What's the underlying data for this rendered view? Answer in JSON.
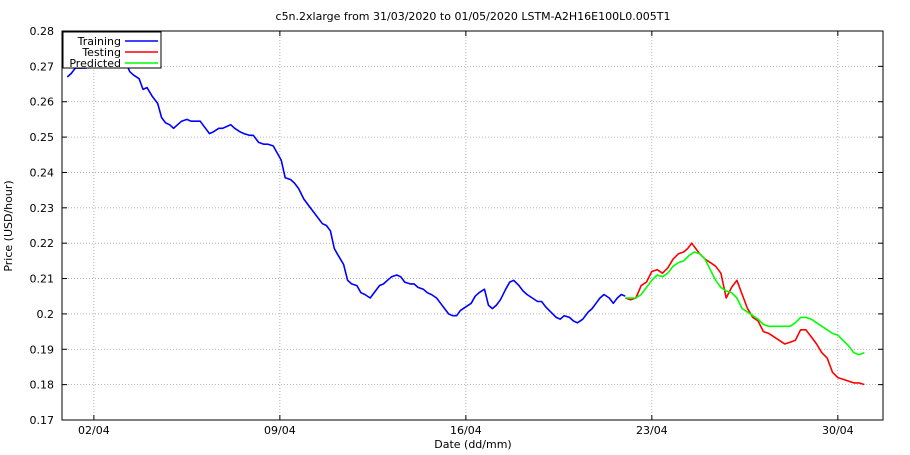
{
  "chart_data": {
    "type": "line",
    "title": "c5n.2xlarge from 31/03/2020 to 01/05/2020 LSTM-A2H16E100L0.005T1",
    "xlabel": "Date (dd/mm)",
    "ylabel": "Price (USD/hour)",
    "xlim": [
      -0.2,
      30.7
    ],
    "ylim": [
      0.17,
      0.28
    ],
    "grid": true,
    "legend_position": "top-left",
    "x_ticks": [
      {
        "x": 1,
        "label": "02/04"
      },
      {
        "x": 8,
        "label": "09/04"
      },
      {
        "x": 15,
        "label": "16/04"
      },
      {
        "x": 22,
        "label": "23/04"
      },
      {
        "x": 29,
        "label": "30/04"
      }
    ],
    "y_ticks": [
      0.17,
      0.18,
      0.19,
      0.2,
      0.21,
      0.22,
      0.23,
      0.24,
      0.25,
      0.26,
      0.27,
      0.28
    ],
    "y_tick_labels": [
      "0.17",
      "0.18",
      "0.19",
      "0.2",
      "0.21",
      "0.22",
      "0.23",
      "0.24",
      "0.25",
      "0.26",
      "0.27",
      "0.28"
    ],
    "series": [
      {
        "name": "Training",
        "color": "#0000ff",
        "x": [
          0.0,
          0.15,
          0.3,
          0.5,
          0.7,
          0.85,
          1.0,
          1.2,
          1.4,
          1.55,
          1.7,
          1.9,
          2.05,
          2.2,
          2.35,
          2.5,
          2.7,
          2.85,
          3.0,
          3.2,
          3.4,
          3.55,
          3.7,
          3.85,
          4.0,
          4.15,
          4.3,
          4.5,
          4.65,
          4.8,
          5.0,
          5.2,
          5.35,
          5.5,
          5.7,
          5.85,
          6.0,
          6.15,
          6.3,
          6.5,
          6.65,
          6.85,
          7.0,
          7.2,
          7.4,
          7.55,
          7.75,
          7.9,
          8.05,
          8.2,
          8.4,
          8.55,
          8.7,
          8.9,
          9.1,
          9.3,
          9.45,
          9.6,
          9.75,
          9.9,
          10.05,
          10.2,
          10.4,
          10.55,
          10.7,
          10.9,
          11.05,
          11.2,
          11.4,
          11.6,
          11.75,
          11.9,
          12.05,
          12.2,
          12.4,
          12.55,
          12.7,
          12.9,
          13.05,
          13.2,
          13.4,
          13.55,
          13.7,
          13.9,
          14.05,
          14.2,
          14.35,
          14.5,
          14.65,
          14.8,
          15.0,
          15.2,
          15.35,
          15.5,
          15.7,
          15.85,
          16.0,
          16.15,
          16.3,
          16.5,
          16.65,
          16.8,
          17.0,
          17.15,
          17.3,
          17.5,
          17.7,
          17.85,
          18.0,
          18.2,
          18.4,
          18.55,
          18.7,
          18.9,
          19.05,
          19.2,
          19.4,
          19.6,
          19.75,
          19.9,
          20.05,
          20.2,
          20.4,
          20.55,
          20.7,
          20.85,
          21.0
        ],
        "y": [
          0.267,
          0.268,
          0.2695,
          0.2695,
          0.2695,
          0.27,
          0.2715,
          0.2715,
          0.2725,
          0.2725,
          0.2705,
          0.272,
          0.2725,
          0.271,
          0.2685,
          0.2675,
          0.2665,
          0.2635,
          0.264,
          0.2615,
          0.2595,
          0.2555,
          0.254,
          0.2535,
          0.2525,
          0.2535,
          0.2545,
          0.255,
          0.2545,
          0.2545,
          0.2545,
          0.2525,
          0.251,
          0.2515,
          0.2525,
          0.2525,
          0.253,
          0.2535,
          0.2525,
          0.2515,
          0.251,
          0.2505,
          0.2505,
          0.2485,
          0.248,
          0.248,
          0.2475,
          0.2455,
          0.2435,
          0.2385,
          0.238,
          0.237,
          0.2355,
          0.2325,
          0.2305,
          0.2285,
          0.227,
          0.2255,
          0.225,
          0.2235,
          0.2185,
          0.2165,
          0.214,
          0.2095,
          0.2085,
          0.208,
          0.206,
          0.2055,
          0.2045,
          0.2065,
          0.208,
          0.2085,
          0.2095,
          0.2105,
          0.211,
          0.2105,
          0.209,
          0.2085,
          0.2085,
          0.2075,
          0.207,
          0.206,
          0.2055,
          0.2045,
          0.203,
          0.2015,
          0.2,
          0.1995,
          0.1995,
          0.201,
          0.202,
          0.203,
          0.205,
          0.206,
          0.207,
          0.2025,
          0.2015,
          0.2025,
          0.204,
          0.207,
          0.209,
          0.2095,
          0.208,
          0.2065,
          0.2055,
          0.2045,
          0.2035,
          0.2035,
          0.202,
          0.2005,
          0.199,
          0.1985,
          0.1995,
          0.199,
          0.198,
          0.1975,
          0.1985,
          0.2005,
          0.2015,
          0.203,
          0.2045,
          0.2055,
          0.2045,
          0.203,
          0.2045,
          0.2055,
          0.205
        ]
      },
      {
        "name": "Testing",
        "color": "#ff0000",
        "x": [
          21.0,
          21.2,
          21.4,
          21.6,
          21.8,
          22.0,
          22.2,
          22.4,
          22.6,
          22.8,
          23.0,
          23.2,
          23.35,
          23.5,
          23.65,
          23.8,
          24.0,
          24.2,
          24.4,
          24.6,
          24.8,
          25.0,
          25.2,
          25.4,
          25.6,
          25.8,
          26.0,
          26.2,
          26.4,
          26.6,
          26.8,
          27.0,
          27.2,
          27.4,
          27.6,
          27.8,
          28.0,
          28.2,
          28.4,
          28.6,
          28.8,
          29.0,
          29.2,
          29.4,
          29.6,
          29.8,
          30.0
        ],
        "y": [
          0.2045,
          0.204,
          0.2045,
          0.208,
          0.209,
          0.212,
          0.2125,
          0.2115,
          0.213,
          0.2155,
          0.217,
          0.2175,
          0.2185,
          0.22,
          0.2185,
          0.217,
          0.2155,
          0.2145,
          0.2135,
          0.2115,
          0.2045,
          0.2075,
          0.2095,
          0.2055,
          0.2015,
          0.199,
          0.198,
          0.195,
          0.1945,
          0.1935,
          0.1925,
          0.1915,
          0.192,
          0.1925,
          0.1955,
          0.1955,
          0.1935,
          0.1915,
          0.189,
          0.1875,
          0.1835,
          0.182,
          0.1815,
          0.181,
          0.1805,
          0.1805,
          0.18
        ]
      },
      {
        "name": "Predicted",
        "color": "#00ff00",
        "x": [
          21.0,
          21.2,
          21.4,
          21.6,
          21.8,
          22.0,
          22.2,
          22.4,
          22.6,
          22.8,
          23.0,
          23.2,
          23.4,
          23.6,
          23.8,
          24.0,
          24.2,
          24.4,
          24.6,
          24.8,
          25.0,
          25.2,
          25.4,
          25.6,
          25.8,
          26.0,
          26.2,
          26.4,
          26.6,
          26.8,
          27.0,
          27.2,
          27.4,
          27.6,
          27.8,
          28.0,
          28.2,
          28.4,
          28.6,
          28.8,
          29.0,
          29.2,
          29.4,
          29.6,
          29.8,
          30.0
        ],
        "y": [
          0.2045,
          0.2045,
          0.2045,
          0.2055,
          0.2075,
          0.2095,
          0.211,
          0.2105,
          0.2115,
          0.2135,
          0.2145,
          0.215,
          0.2165,
          0.2175,
          0.217,
          0.2155,
          0.2125,
          0.2095,
          0.2075,
          0.2065,
          0.206,
          0.2045,
          0.2015,
          0.2005,
          0.1995,
          0.1985,
          0.197,
          0.1965,
          0.1965,
          0.1965,
          0.1965,
          0.1965,
          0.1975,
          0.199,
          0.199,
          0.1985,
          0.1975,
          0.1965,
          0.1955,
          0.1945,
          0.194,
          0.1925,
          0.191,
          0.189,
          0.1885,
          0.189
        ]
      }
    ]
  }
}
